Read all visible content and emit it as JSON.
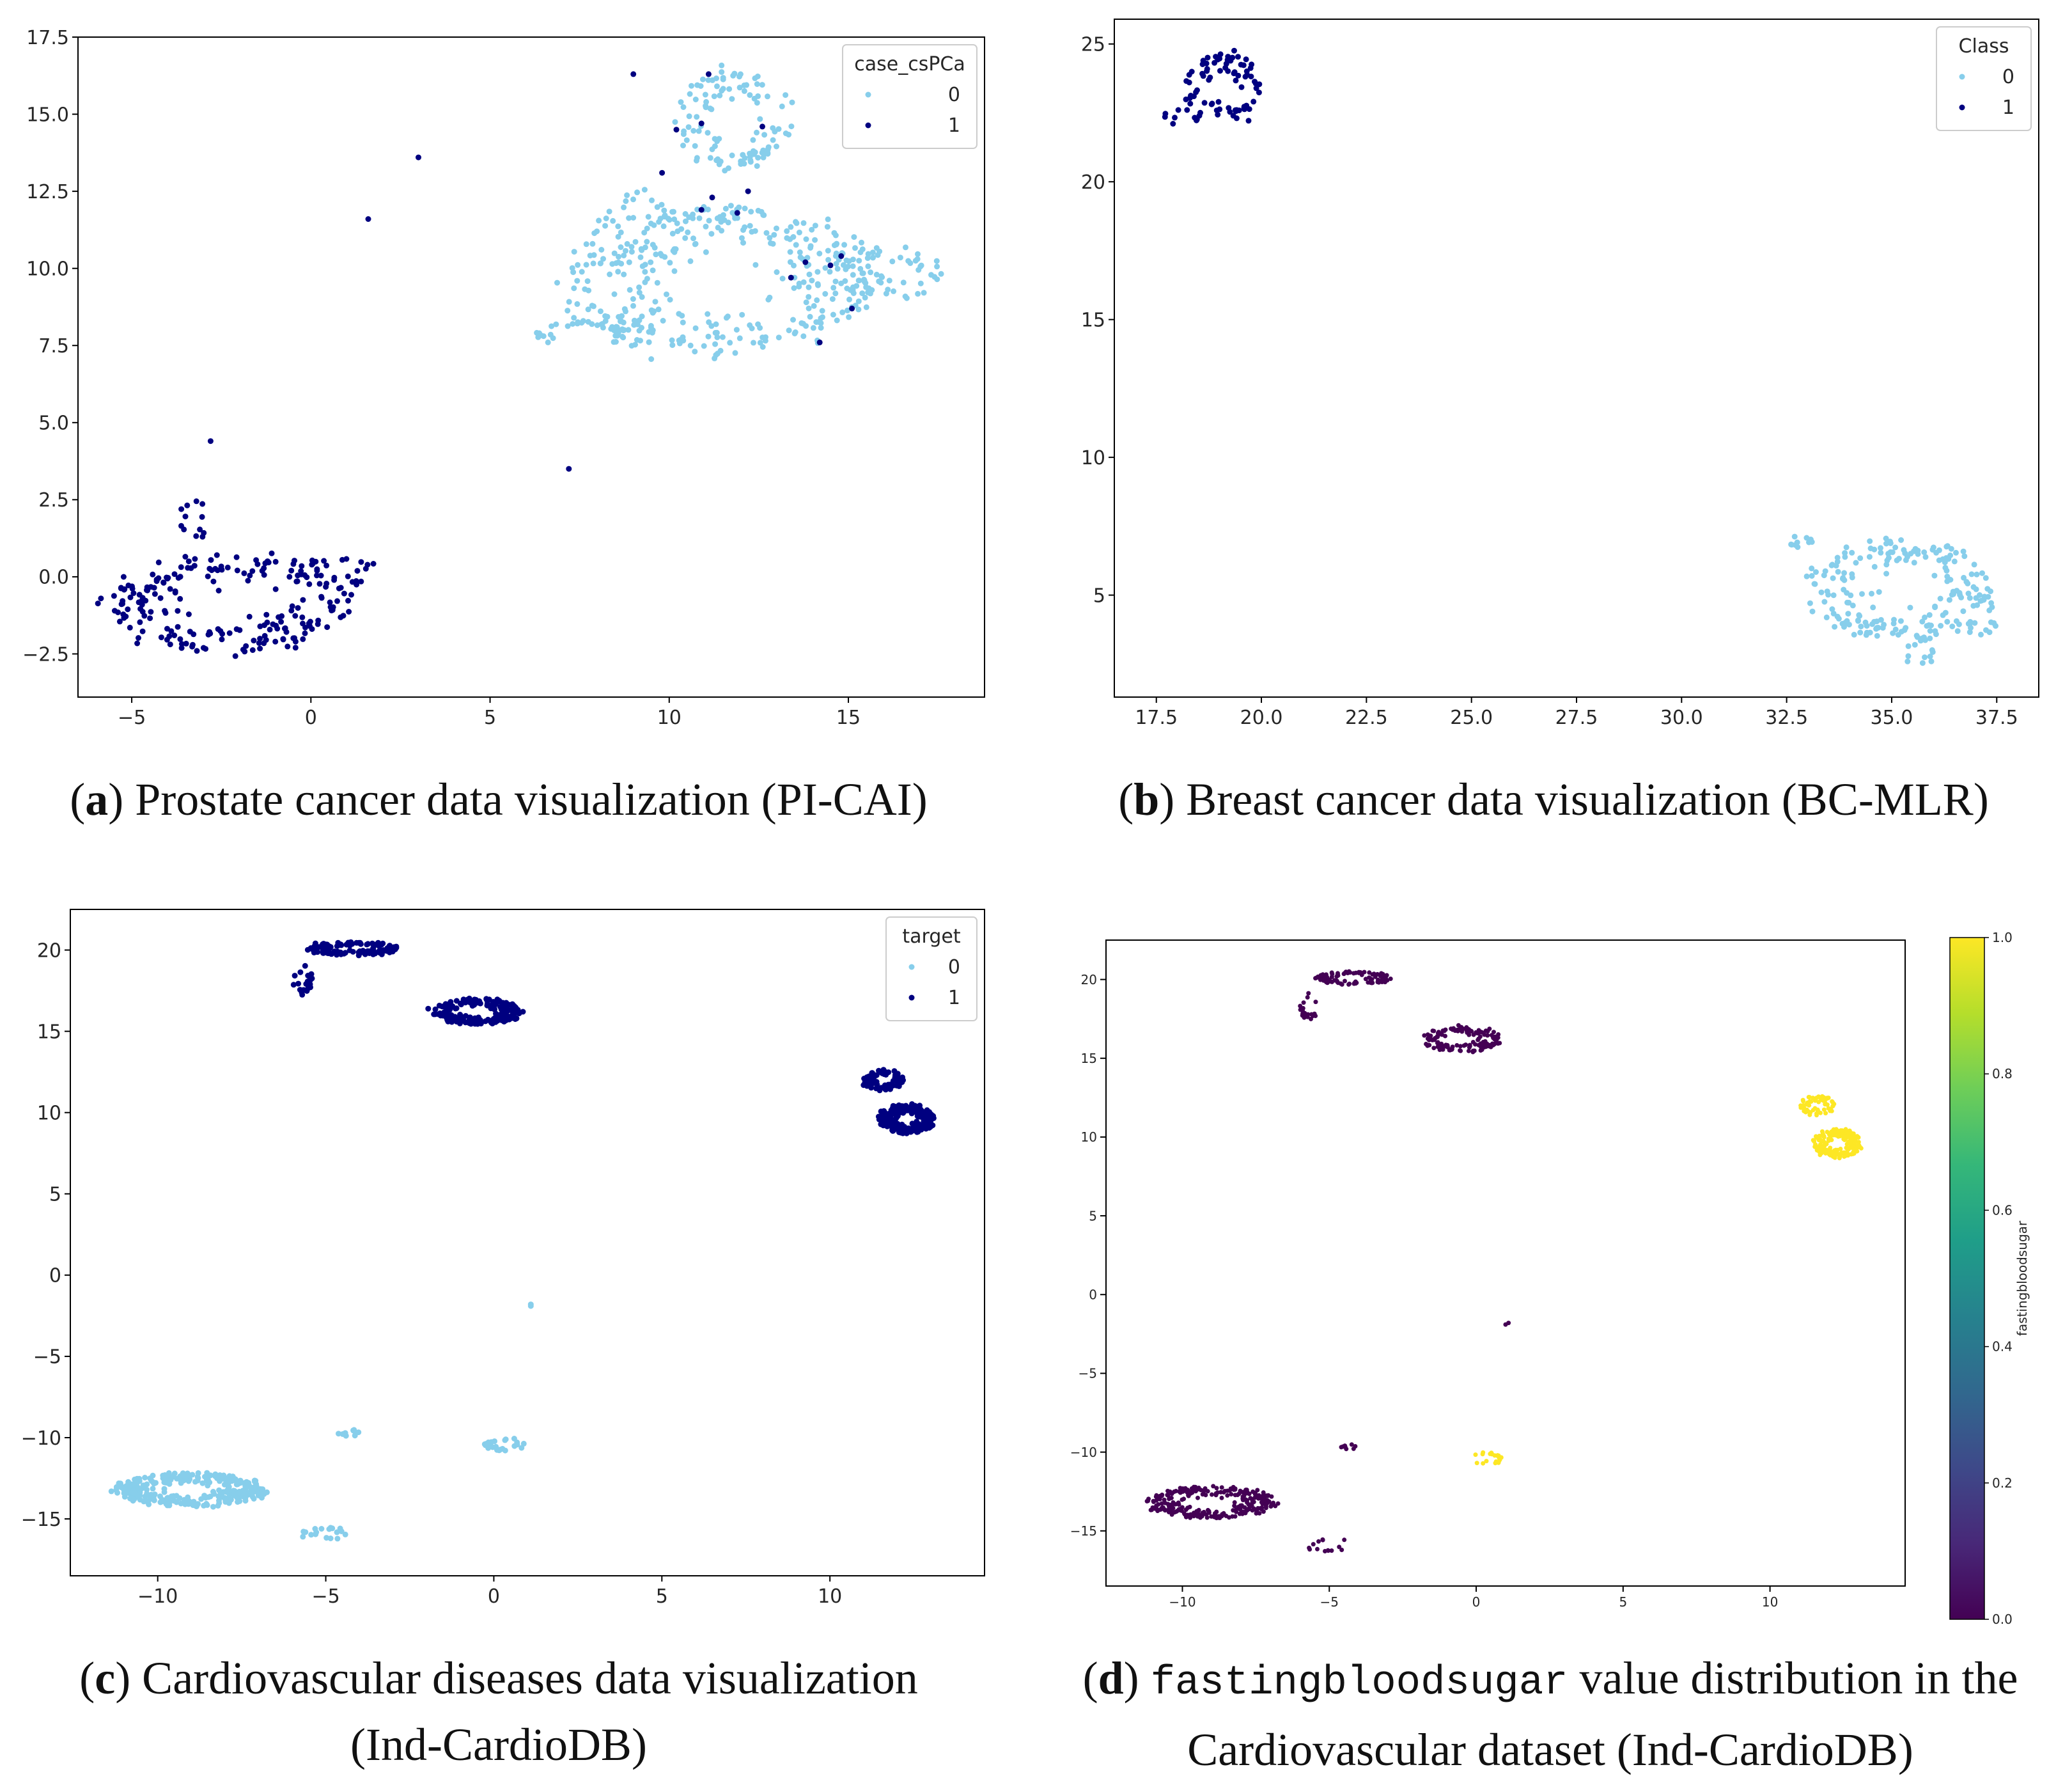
{
  "figure": {
    "captions": [
      {
        "letter": "a",
        "text": "Prostate cancer data visualization (PI-CAI)"
      },
      {
        "letter": "b",
        "text": "Breast cancer data visualization (BC-MLR)"
      },
      {
        "letter": "c",
        "line1": "Cardiovascular diseases data visualization",
        "line2": "(Ind-CardioDB)"
      },
      {
        "letter": "d",
        "mono": "fastingbloodsugar",
        "line1": " value distribution in the",
        "line2": "Cardiovascular dataset (Ind-CardioDB)"
      }
    ]
  },
  "colors": {
    "class0": "#87ceeb",
    "class1": "#000080"
  },
  "chart_data": [
    {
      "id": "a",
      "type": "scatter",
      "xlim": [
        -6.5,
        18.8
      ],
      "ylim": [
        -3.9,
        17.5
      ],
      "xticks": [
        -5,
        0,
        5,
        10,
        15
      ],
      "yticks": [
        -2.5,
        0.0,
        2.5,
        5.0,
        7.5,
        10.0,
        12.5,
        15.0,
        17.5
      ],
      "xtick_labels": [
        "−5",
        "0",
        "5",
        "10",
        "15"
      ],
      "ytick_labels": [
        "−2.5",
        "0.0",
        "2.5",
        "5.0",
        "7.5",
        "10.0",
        "12.5",
        "15.0",
        "17.5"
      ],
      "legend": {
        "title": "case_csPCa",
        "entries": [
          "0",
          "1"
        ],
        "position": "top-right"
      },
      "series": [
        {
          "name": "0",
          "color": "#87ceeb",
          "clusters": [
            {
              "cx": 11.5,
              "cy": 9.6,
              "rx": 4.5,
              "ry": 2.4,
              "n": 360
            },
            {
              "cx": 7.5,
              "cy": 7.9,
              "rx": 1.5,
              "ry": 0.4,
              "n": 30
            },
            {
              "cx": 11.8,
              "cy": 14.8,
              "rx": 1.7,
              "ry": 1.6,
              "n": 110
            },
            {
              "cx": 16.2,
              "cy": 9.8,
              "rx": 1.4,
              "ry": 0.9,
              "n": 50
            },
            {
              "cx": 9.3,
              "cy": 11.2,
              "rx": 1.2,
              "ry": 1.3,
              "n": 40
            }
          ]
        },
        {
          "name": "1",
          "color": "#000080",
          "clusters": [
            {
              "cx": -2.2,
              "cy": -0.9,
              "rx": 3.4,
              "ry": 1.6,
              "n": 220
            },
            {
              "cx": 0.8,
              "cy": 0.2,
              "rx": 1.2,
              "ry": 0.5,
              "n": 20
            },
            {
              "cx": -3.3,
              "cy": 1.8,
              "rx": 0.4,
              "ry": 0.8,
              "n": 12
            }
          ],
          "points": [
            [
              -2.8,
              4.4
            ],
            [
              1.6,
              11.6
            ],
            [
              3.0,
              13.6
            ],
            [
              7.2,
              3.5
            ],
            [
              9.0,
              16.3
            ],
            [
              11.1,
              16.3
            ],
            [
              10.2,
              14.5
            ],
            [
              10.9,
              14.7
            ],
            [
              12.6,
              14.6
            ],
            [
              11.9,
              11.8
            ],
            [
              10.9,
              11.9
            ],
            [
              14.2,
              7.6
            ],
            [
              14.5,
              10.1
            ],
            [
              14.8,
              10.4
            ],
            [
              15.1,
              8.7
            ],
            [
              13.4,
              9.7
            ],
            [
              13.8,
              10.2
            ],
            [
              11.2,
              12.3
            ],
            [
              9.8,
              13.1
            ],
            [
              12.2,
              12.5
            ]
          ]
        }
      ]
    },
    {
      "id": "b",
      "type": "scatter",
      "xlim": [
        16.5,
        38.5
      ],
      "ylim": [
        1.3,
        25.9
      ],
      "xticks": [
        17.5,
        20.0,
        22.5,
        25.0,
        27.5,
        30.0,
        32.5,
        35.0,
        37.5
      ],
      "yticks": [
        5,
        10,
        15,
        20,
        25
      ],
      "xtick_labels": [
        "17.5",
        "20.0",
        "22.5",
        "25.0",
        "27.5",
        "30.0",
        "32.5",
        "35.0",
        "37.5"
      ],
      "ytick_labels": [
        "5",
        "10",
        "15",
        "20",
        "25"
      ],
      "legend": {
        "title": "Class",
        "entries": [
          "0",
          "1"
        ],
        "position": "top-right"
      },
      "series": [
        {
          "name": "0",
          "color": "#87ceeb",
          "clusters": [
            {
              "cx": 35.2,
              "cy": 5.2,
              "rx": 2.2,
              "ry": 1.8,
              "n": 200
            },
            {
              "cx": 32.8,
              "cy": 7.0,
              "rx": 0.3,
              "ry": 0.3,
              "n": 10
            },
            {
              "cx": 35.7,
              "cy": 3.0,
              "rx": 0.5,
              "ry": 0.5,
              "n": 14
            },
            {
              "cx": 37.1,
              "cy": 4.2,
              "rx": 0.4,
              "ry": 0.8,
              "n": 18
            }
          ]
        },
        {
          "name": "1",
          "color": "#000080",
          "clusters": [
            {
              "cx": 19.1,
              "cy": 23.4,
              "rx": 0.9,
              "ry": 1.3,
              "n": 80
            },
            {
              "cx": 18.1,
              "cy": 22.4,
              "rx": 0.5,
              "ry": 0.3,
              "n": 10
            }
          ]
        }
      ]
    },
    {
      "id": "c",
      "type": "scatter",
      "xlim": [
        -12.6,
        14.6
      ],
      "ylim": [
        -18.5,
        22.5
      ],
      "xticks": [
        -10,
        -5,
        0,
        5,
        10
      ],
      "yticks": [
        -15,
        -10,
        -5,
        0,
        5,
        10,
        15,
        20
      ],
      "xtick_labels": [
        "−10",
        "−5",
        "0",
        "5",
        "10"
      ],
      "ytick_labels": [
        "−15",
        "−10",
        "−5",
        "0",
        "5",
        "10",
        "15",
        "20"
      ],
      "legend": {
        "title": "target",
        "entries": [
          "0",
          "1"
        ],
        "position": "top-right"
      },
      "series": [
        {
          "name": "0",
          "color": "#87ceeb",
          "clusters": [
            {
              "cx": -9.0,
              "cy": -13.2,
              "rx": 2.2,
              "ry": 1.0,
              "n": 320
            },
            {
              "cx": -4.3,
              "cy": -9.7,
              "rx": 0.3,
              "ry": 0.2,
              "n": 10
            },
            {
              "cx": 0.3,
              "cy": -10.4,
              "rx": 0.6,
              "ry": 0.4,
              "n": 25
            },
            {
              "cx": -5.0,
              "cy": -15.9,
              "rx": 0.8,
              "ry": 0.4,
              "n": 18
            }
          ],
          "points": [
            [
              1.1,
              -1.8
            ],
            [
              1.1,
              -1.9
            ]
          ]
        },
        {
          "name": "1",
          "color": "#000080",
          "clusters": [
            {
              "cx": -4.2,
              "cy": 20.1,
              "rx": 1.3,
              "ry": 0.4,
              "n": 120
            },
            {
              "cx": -5.7,
              "cy": 18.2,
              "rx": 0.3,
              "ry": 0.9,
              "n": 24
            },
            {
              "cx": -0.5,
              "cy": 16.2,
              "rx": 1.3,
              "ry": 0.8,
              "n": 180
            },
            {
              "cx": 12.3,
              "cy": 9.6,
              "rx": 0.8,
              "ry": 0.9,
              "n": 200
            },
            {
              "cx": 11.6,
              "cy": 12.0,
              "rx": 0.6,
              "ry": 0.6,
              "n": 70
            }
          ]
        }
      ]
    },
    {
      "id": "d",
      "type": "scatter",
      "xlim": [
        -12.6,
        14.6
      ],
      "ylim": [
        -18.5,
        22.5
      ],
      "xticks": [
        -10,
        -5,
        0,
        5,
        10
      ],
      "yticks": [
        -15,
        -10,
        -5,
        0,
        5,
        10,
        15,
        20
      ],
      "xtick_labels": [
        "−10",
        "−5",
        "0",
        "5",
        "10"
      ],
      "ytick_labels": [
        "−15",
        "−10",
        "−5",
        "0",
        "5",
        "10",
        "15",
        "20"
      ],
      "colorbar": {
        "label": "fastingbloodsugar",
        "ticks": [
          "0.0",
          "0.2",
          "0.4",
          "0.6",
          "0.8",
          "1.0"
        ],
        "range": [
          0.0,
          1.0
        ],
        "colormap": "viridis"
      },
      "series": [
        {
          "name": "0",
          "color": "#440154",
          "clusters": [
            {
              "cx": -4.2,
              "cy": 20.1,
              "rx": 1.3,
              "ry": 0.4,
              "n": 100
            },
            {
              "cx": -5.7,
              "cy": 18.2,
              "rx": 0.3,
              "ry": 0.9,
              "n": 20
            },
            {
              "cx": -0.5,
              "cy": 16.2,
              "rx": 1.3,
              "ry": 0.8,
              "n": 150
            },
            {
              "cx": -9.0,
              "cy": -13.2,
              "rx": 2.2,
              "ry": 1.0,
              "n": 280
            },
            {
              "cx": -4.3,
              "cy": -9.7,
              "rx": 0.3,
              "ry": 0.2,
              "n": 8
            },
            {
              "cx": -5.0,
              "cy": -15.9,
              "rx": 0.8,
              "ry": 0.4,
              "n": 14
            }
          ],
          "points": [
            [
              1.1,
              -1.8
            ],
            [
              1.0,
              -1.9
            ]
          ]
        },
        {
          "name": "1",
          "color": "#fde725",
          "clusters": [
            {
              "cx": 12.3,
              "cy": 9.6,
              "rx": 0.8,
              "ry": 0.9,
              "n": 180
            },
            {
              "cx": 11.6,
              "cy": 12.0,
              "rx": 0.6,
              "ry": 0.6,
              "n": 60
            },
            {
              "cx": 0.3,
              "cy": -10.4,
              "rx": 0.6,
              "ry": 0.4,
              "n": 22
            }
          ]
        }
      ]
    }
  ]
}
